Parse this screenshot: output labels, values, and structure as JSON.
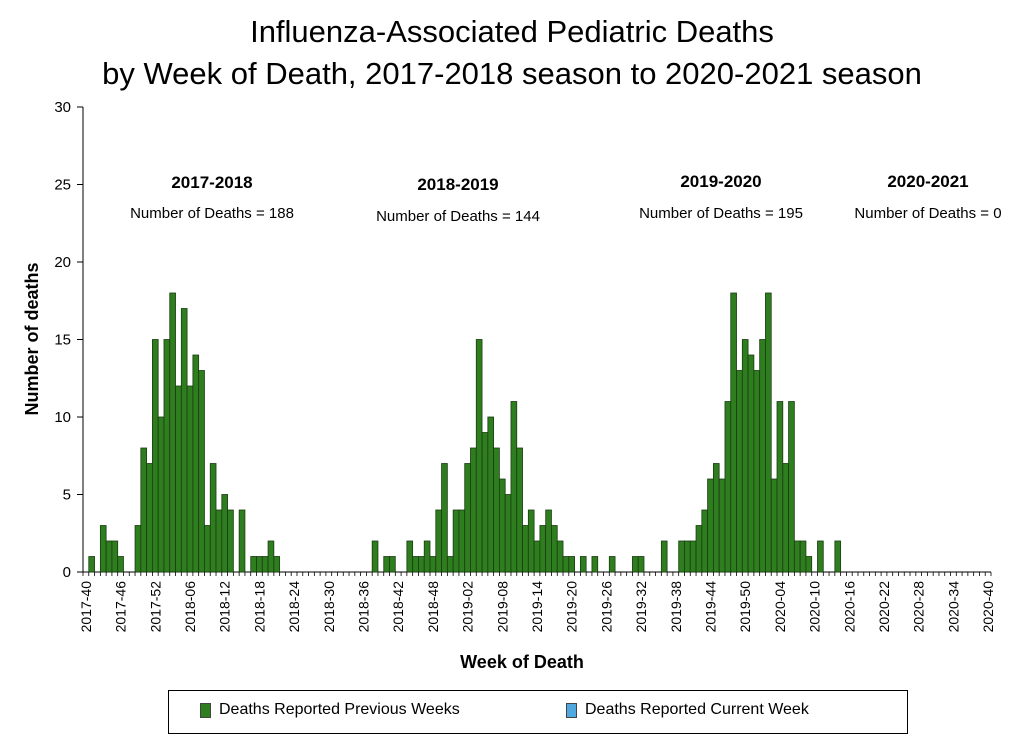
{
  "chart_data": {
    "type": "bar",
    "title_line1": "Influenza-Associated Pediatric Deaths",
    "title_line2": "by Week of Death, 2017-2018 season to 2020-2021 season",
    "xlabel": "Week of Death",
    "ylabel": "Number of deaths",
    "ylim": [
      0,
      30
    ],
    "yticks": [
      0,
      5,
      10,
      15,
      20,
      25,
      30
    ],
    "grid": false,
    "legend_position": "bottom",
    "colors": {
      "previous": "#2e7d1e",
      "current": "#4fa9e0"
    },
    "x_tick_labels": [
      "2017-40",
      "2017-46",
      "2017-52",
      "2018-06",
      "2018-12",
      "2018-18",
      "2018-24",
      "2018-30",
      "2018-36",
      "2018-42",
      "2018-48",
      "2019-02",
      "2019-08",
      "2019-14",
      "2019-20",
      "2019-26",
      "2019-32",
      "2019-38",
      "2019-44",
      "2019-50",
      "2020-04",
      "2020-10",
      "2020-16",
      "2020-22",
      "2020-28",
      "2020-34",
      "2020-40"
    ],
    "series": [
      {
        "name": "Deaths Reported Previous Weeks",
        "values": [
          0,
          1,
          0,
          3,
          2,
          2,
          1,
          0,
          0,
          3,
          8,
          7,
          15,
          10,
          15,
          18,
          12,
          17,
          12,
          14,
          13,
          3,
          7,
          4,
          5,
          4,
          0,
          4,
          0,
          1,
          1,
          1,
          2,
          1,
          0,
          0,
          0,
          0,
          0,
          0,
          0,
          0,
          0,
          0,
          0,
          0,
          0,
          0,
          0,
          0,
          2,
          0,
          1,
          1,
          0,
          0,
          2,
          1,
          1,
          2,
          1,
          4,
          7,
          1,
          4,
          4,
          7,
          8,
          15,
          9,
          10,
          8,
          6,
          5,
          11,
          8,
          3,
          4,
          2,
          3,
          4,
          3,
          2,
          1,
          1,
          0,
          1,
          0,
          1,
          0,
          0,
          1,
          0,
          0,
          0,
          1,
          1,
          0,
          0,
          0,
          2,
          0,
          0,
          2,
          2,
          2,
          3,
          4,
          6,
          7,
          6,
          11,
          18,
          13,
          15,
          14,
          13,
          15,
          18,
          6,
          11,
          7,
          11,
          2,
          2,
          1,
          0,
          2,
          0,
          0,
          2,
          0,
          0,
          0,
          0,
          0,
          0,
          0,
          0,
          0,
          0,
          0,
          0,
          0,
          0,
          0,
          0,
          0,
          0,
          0,
          0,
          0,
          0,
          0,
          0,
          0,
          0
        ]
      },
      {
        "name": "Deaths Reported Current Week",
        "values": []
      }
    ],
    "annotations": [
      {
        "season": "2017-2018",
        "text": "Number of Deaths = 188"
      },
      {
        "season": "2018-2019",
        "text": "Number of Deaths = 144"
      },
      {
        "season": "2019-2020",
        "text": "Number of Deaths = 195"
      },
      {
        "season": "2020-2021",
        "text": "Number of Deaths = 0"
      }
    ]
  }
}
